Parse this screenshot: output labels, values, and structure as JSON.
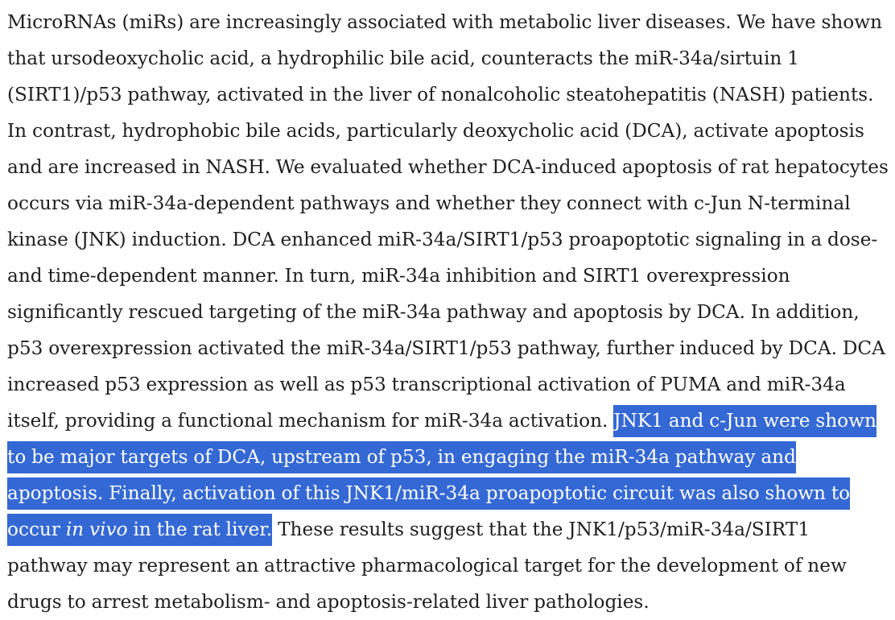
{
  "document": {
    "lead_text": "MicroRNAs (miRs) are increasingly associated with metabolic liver diseases. We have shown that ursodeoxycholic acid, a hydrophilic bile acid, counteracts the miR-34a/sirtuin 1 (SIRT1)/p53 pathway, activated in the liver of nonalcoholic steatohepatitis (NASH) patients. In contrast, hydrophobic bile acids, particularly deoxycholic acid (DCA), activate apoptosis and are increased in NASH. We evaluated whether DCA-induced apoptosis of rat hepatocytes occurs via miR-34a-dependent pathways and whether they connect with c-Jun N-terminal kinase (JNK) induction. DCA enhanced miR-34a/SIRT1/p53 proapoptotic signaling in a dose- and time-dependent manner. In turn, miR-34a inhibition and SIRT1 overexpression significantly rescued targeting of the miR-34a pathway and apoptosis by DCA. In addition, p53 overexpression activated the miR-34a/SIRT1/p53 pathway, further induced by DCA. DCA increased p53 expression as well as p53 transcriptional activation of PUMA and miR-34a itself, providing a functional mechanism for miR-34a activation. ",
    "selected_text_1": "JNK1 and c-Jun were shown to be major targets of DCA, upstream of p53, in engaging the miR-34a pathway and apoptosis. Finally, activation of this JNK1/miR-34a proapoptotic circuit was also shown to occur ",
    "selected_italic": "in vivo",
    "selected_text_2": " in the rat liver.",
    "trailing_text": " These results suggest that the JNK1/p53/miR-34a/SIRT1 pathway may represent an attractive pharmacological target for the development of new drugs to arrest metabolism- and apoptosis-related liver pathologies."
  },
  "colors": {
    "text": "#1f1f1f",
    "selection_background": "#3468d4",
    "selection_text": "#ffffff",
    "page_background": "#ffffff"
  }
}
